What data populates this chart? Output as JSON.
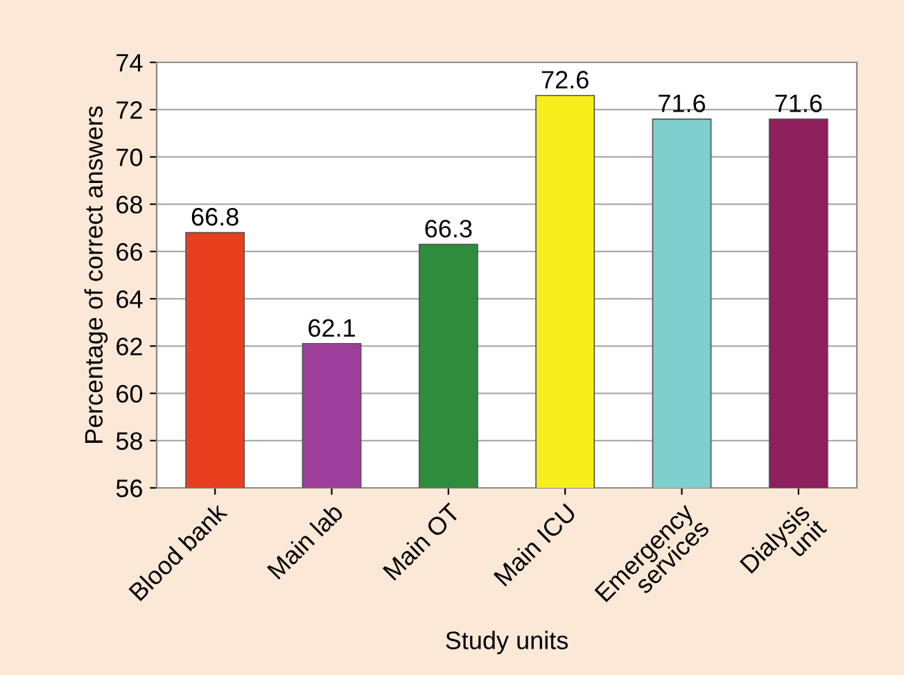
{
  "chart_data": {
    "type": "bar",
    "xlabel": "Study units",
    "ylabel": "Percentage of correct answers",
    "categories": [
      "Blood bank",
      "Main lab",
      "Main OT",
      "Main ICU",
      "Emergency\nservices",
      "Dialysis\nunit"
    ],
    "values": [
      66.8,
      62.1,
      66.3,
      72.6,
      71.6,
      71.6
    ],
    "colors": [
      "#e8401e",
      "#9e3f9e",
      "#2f8c3c",
      "#f7ef1c",
      "#7fcfcf",
      "#8c1f5c"
    ],
    "ylim": [
      56,
      74
    ],
    "yticks": [
      56,
      58,
      60,
      62,
      64,
      66,
      68,
      70,
      72,
      74
    ],
    "grid": "y",
    "data_labels": true
  }
}
